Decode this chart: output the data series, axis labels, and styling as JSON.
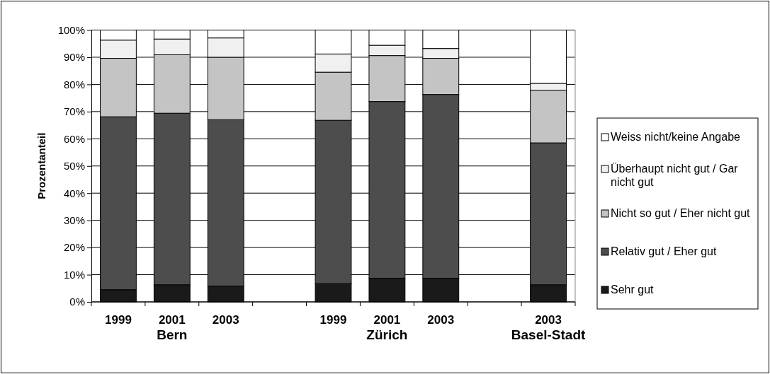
{
  "chart_data": {
    "type": "bar",
    "stacked": true,
    "ylabel": "Prozentanteil",
    "categories": [
      "1999",
      "2001",
      "2003",
      null,
      "1999",
      "2001",
      "2003",
      null,
      "2003"
    ],
    "annotations": [
      "Bern",
      "Zürich",
      "Basel-Stadt"
    ],
    "series": [
      {
        "name": "Sehr gut",
        "color": "#1a1a1a",
        "values": [
          4.5,
          6.3,
          5.8,
          null,
          6.7,
          8.7,
          8.7,
          null,
          6.3
        ]
      },
      {
        "name": "Relativ gut / Eher gut",
        "color": "#4d4d4d",
        "values": [
          63.6,
          63.1,
          61.2,
          null,
          60.1,
          65.0,
          67.6,
          null,
          52.2
        ]
      },
      {
        "name": "Nicht so gut / Eher nicht gut",
        "color": "#c4c4c4",
        "values": [
          21.5,
          21.5,
          23.0,
          null,
          17.7,
          16.9,
          13.3,
          null,
          19.4
        ]
      },
      {
        "name": "Überhaupt nicht gut / Gar nicht gut",
        "color": "#f0f0f0",
        "values": [
          6.7,
          5.8,
          7.1,
          null,
          6.7,
          3.8,
          3.6,
          null,
          2.5
        ]
      },
      {
        "name": "Weiss nicht/keine Angabe",
        "color": "#ffffff",
        "values": [
          3.7,
          3.3,
          2.9,
          null,
          8.8,
          5.6,
          6.8,
          null,
          19.6
        ]
      }
    ],
    "ylim": [
      0,
      100
    ],
    "yticks": [
      {
        "value": 0,
        "label": "0%"
      },
      {
        "value": 10,
        "label": "10%"
      },
      {
        "value": 20,
        "label": "20%"
      },
      {
        "value": 30,
        "label": "30%"
      },
      {
        "value": 40,
        "label": "40%"
      },
      {
        "value": 50,
        "label": "50%"
      },
      {
        "value": 60,
        "label": "60%"
      },
      {
        "value": 70,
        "label": "70%"
      },
      {
        "value": 80,
        "label": "80%"
      },
      {
        "value": 90,
        "label": "90%"
      },
      {
        "value": 100,
        "label": "100%"
      }
    ],
    "grid": "y",
    "legend": "right"
  }
}
